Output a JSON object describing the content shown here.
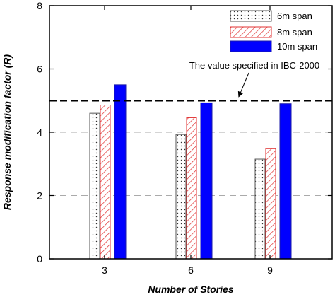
{
  "chart_data": {
    "type": "bar",
    "categories": [
      "3",
      "6",
      "9"
    ],
    "series": [
      {
        "name": "6m span",
        "values": [
          4.6,
          3.93,
          3.15
        ],
        "pattern": "dots"
      },
      {
        "name": "8m span",
        "values": [
          4.86,
          4.46,
          3.48
        ],
        "pattern": "hatch"
      },
      {
        "name": "10m span",
        "values": [
          5.5,
          4.93,
          4.9
        ],
        "pattern": "solid"
      }
    ],
    "xlabel": "Number of Stories",
    "ylabel": "Response modification factor (R)",
    "ylim": [
      0,
      8
    ],
    "yticks": [
      "0",
      "2",
      "4",
      "6",
      "8"
    ],
    "gridlines_at": [
      2,
      4,
      6
    ],
    "grid": true,
    "legend_position": "top-right",
    "reference_line": {
      "value": 5.0,
      "label": "The value specified in IBC-2000"
    },
    "colors": {
      "hatch": "#e03030",
      "outline_8m": "#e03030",
      "outline_10m": "#1a1aa8",
      "solid": "#0000ff",
      "grid": "#aaaaaa",
      "dots": "#333333"
    }
  }
}
